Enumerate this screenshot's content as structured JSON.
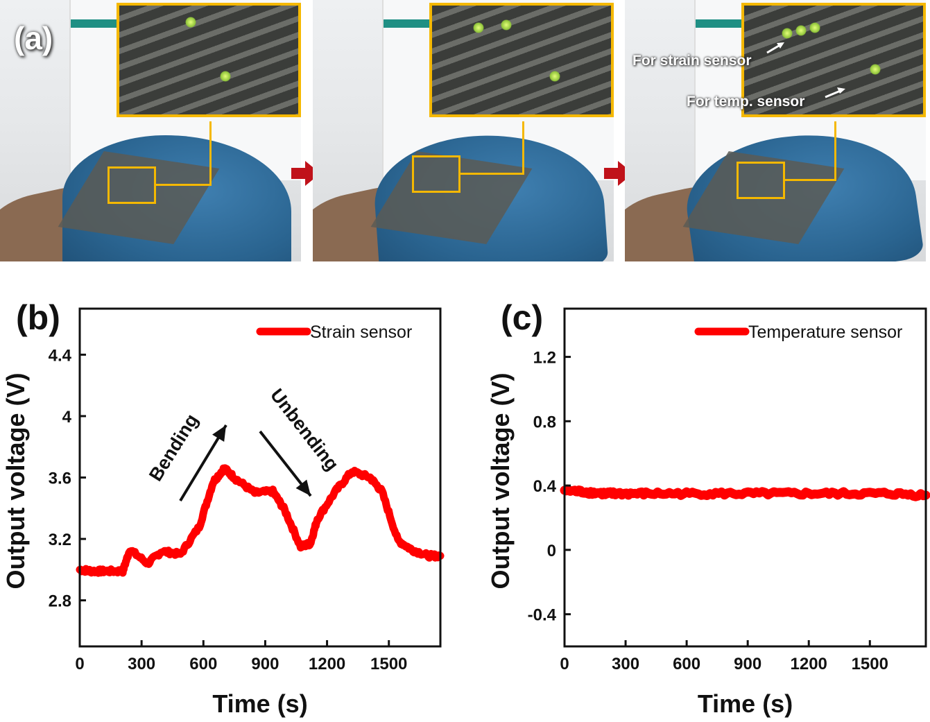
{
  "panel_a": {
    "label": "(a)",
    "annotations": {
      "strain": "For strain sensor",
      "temp": "For temp. sensor"
    },
    "highlight_color": "#f5b800",
    "sequence_arrow_color": "#c0121a",
    "frames": [
      "flat",
      "bending",
      "bent"
    ]
  },
  "chart_data": [
    {
      "panel_label": "(b)",
      "type": "line",
      "xlabel": "Time (s)",
      "ylabel": "Output voltage (V)",
      "xlim": [
        0,
        1750
      ],
      "ylim": [
        2.5,
        4.7
      ],
      "xticks": [
        "0",
        "300",
        "600",
        "900",
        "1200",
        "1500"
      ],
      "yticks": [
        "2.8",
        "3.2",
        "3.6",
        "4",
        "4.4"
      ],
      "grid": false,
      "legend_position": "top-right",
      "color": "#ff0000",
      "annotations": [
        "Bending",
        "Unbending"
      ],
      "series": [
        {
          "name": "Strain sensor",
          "x": [
            0,
            60,
            120,
            209,
            243,
            330,
            398,
            489,
            580,
            647,
            701,
            758,
            849,
            937,
            994,
            1072,
            1119,
            1153,
            1241,
            1321,
            1409,
            1466,
            1544,
            1611,
            1692,
            1750
          ],
          "y": [
            3.0,
            2.99,
            2.99,
            2.99,
            3.13,
            3.04,
            3.12,
            3.1,
            3.28,
            3.57,
            3.66,
            3.59,
            3.5,
            3.51,
            3.39,
            3.15,
            3.17,
            3.33,
            3.51,
            3.64,
            3.6,
            3.51,
            3.19,
            3.13,
            3.09,
            3.09
          ]
        }
      ]
    },
    {
      "panel_label": "(c)",
      "type": "line",
      "xlabel": "Time (s)",
      "ylabel": "Output voltage (V)",
      "xlim": [
        0,
        1775
      ],
      "ylim": [
        -0.6,
        1.5
      ],
      "xticks": [
        "0",
        "300",
        "600",
        "900",
        "1200",
        "1500"
      ],
      "yticks": [
        "-0.4",
        "0",
        "0.4",
        "0.8",
        "1.2"
      ],
      "grid": false,
      "legend_position": "top-right",
      "color": "#ff0000",
      "series": [
        {
          "name": "Temperature sensor",
          "x": [
            0,
            100,
            200,
            250,
            400,
            600,
            800,
            1000,
            1200,
            1400,
            1600,
            1775
          ],
          "y": [
            0.37,
            0.36,
            0.35,
            0.35,
            0.35,
            0.35,
            0.35,
            0.35,
            0.35,
            0.35,
            0.35,
            0.34
          ]
        }
      ]
    }
  ]
}
